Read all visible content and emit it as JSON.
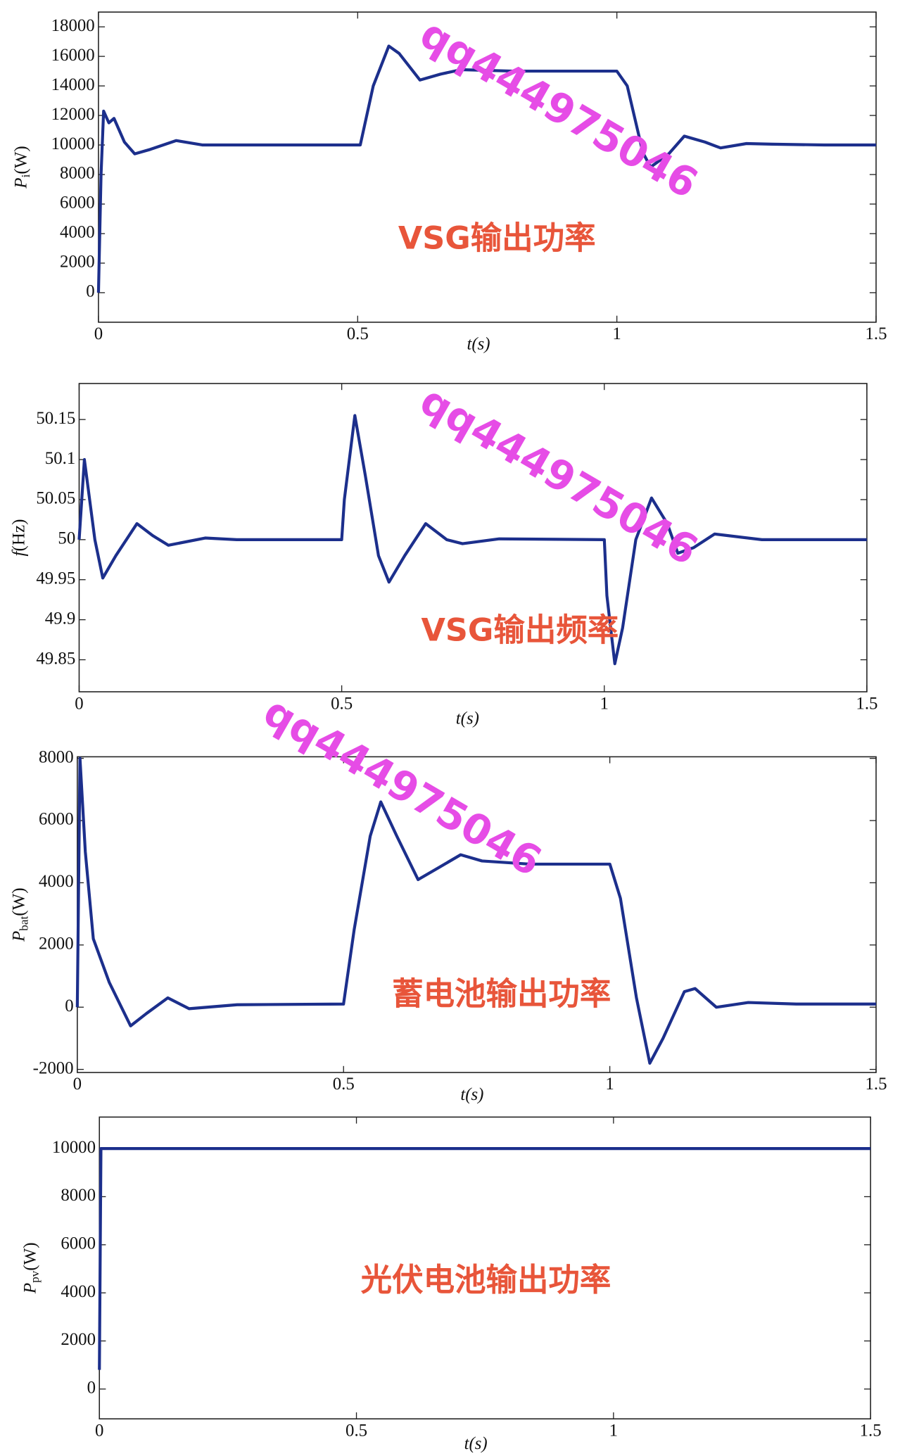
{
  "chart_data": [
    {
      "type": "line",
      "ylabel": [
        "P",
        "i",
        "(W)"
      ],
      "xlabel": "t(s)",
      "annotation": "VSG输出功率",
      "watermark": "qq444975046",
      "xlim": [
        0,
        1.5
      ],
      "xticks": [
        0,
        0.5,
        1,
        1.5
      ],
      "ylim": [
        -2000,
        19000
      ],
      "yticks": [
        0,
        2000,
        4000,
        6000,
        8000,
        10000,
        12000,
        14000,
        16000,
        18000
      ],
      "grid": false,
      "x": [
        0,
        0.005,
        0.01,
        0.02,
        0.03,
        0.05,
        0.07,
        0.1,
        0.15,
        0.2,
        0.3,
        0.45,
        0.505,
        0.53,
        0.56,
        0.58,
        0.62,
        0.66,
        0.7,
        0.8,
        1.0,
        1.02,
        1.05,
        1.065,
        1.1,
        1.13,
        1.17,
        1.2,
        1.25,
        1.3,
        1.4,
        1.5
      ],
      "series": [
        {
          "color": "#1c2f8c",
          "values": [
            0,
            8000,
            12300,
            11500,
            11800,
            10200,
            9400,
            9700,
            10300,
            10000,
            10000,
            10000,
            10000,
            14000,
            16700,
            16200,
            14400,
            14800,
            15100,
            15000,
            15000,
            14000,
            9500,
            8500,
            9400,
            10600,
            10200,
            9800,
            10100,
            10050,
            10000,
            10000
          ]
        }
      ]
    },
    {
      "type": "line",
      "ylabel": [
        "f",
        "",
        "(Hz)"
      ],
      "xlabel": "t(s)",
      "annotation": "VSG输出频率",
      "watermark": "qq444975046",
      "xlim": [
        0,
        1.5
      ],
      "xticks": [
        0,
        0.5,
        1,
        1.5
      ],
      "ylim": [
        49.81,
        50.195
      ],
      "yticks": [
        49.85,
        49.9,
        49.95,
        50,
        50.05,
        50.1,
        50.15
      ],
      "grid": false,
      "x": [
        0,
        0.01,
        0.03,
        0.045,
        0.07,
        0.11,
        0.14,
        0.17,
        0.24,
        0.3,
        0.5,
        0.505,
        0.525,
        0.545,
        0.57,
        0.59,
        0.62,
        0.66,
        0.7,
        0.73,
        0.8,
        1.0,
        1.005,
        1.02,
        1.035,
        1.06,
        1.09,
        1.12,
        1.14,
        1.17,
        1.21,
        1.3,
        1.5
      ],
      "series": [
        {
          "color": "#1c2f8c",
          "values": [
            50,
            50.1,
            50.0,
            49.952,
            49.98,
            50.02,
            50.005,
            49.993,
            50.002,
            50,
            50,
            50.05,
            50.155,
            50.08,
            49.98,
            49.947,
            49.98,
            50.02,
            50.0,
            49.995,
            50.001,
            50,
            49.93,
            49.845,
            49.89,
            50.0,
            50.052,
            50.02,
            49.983,
            49.99,
            50.007,
            50,
            50
          ]
        }
      ]
    },
    {
      "type": "line",
      "ylabel": [
        "P",
        "bat",
        "(W)"
      ],
      "xlabel": "t(s)",
      "annotation": "蓄电池输出功率",
      "watermark": "qq444975046",
      "xlim": [
        0,
        1.5
      ],
      "xticks": [
        0,
        0.5,
        1,
        1.5
      ],
      "ylim": [
        -2100,
        8050
      ],
      "yticks": [
        -2000,
        0,
        2000,
        4000,
        6000,
        8000
      ],
      "grid": false,
      "x": [
        0,
        0.005,
        0.015,
        0.03,
        0.06,
        0.1,
        0.13,
        0.17,
        0.21,
        0.3,
        0.5,
        0.52,
        0.55,
        0.57,
        0.6,
        0.64,
        0.68,
        0.72,
        0.76,
        0.85,
        1.0,
        1.02,
        1.05,
        1.075,
        1.1,
        1.14,
        1.16,
        1.2,
        1.26,
        1.35,
        1.5
      ],
      "series": [
        {
          "color": "#1c2f8c",
          "values": [
            0,
            8000,
            5000,
            2200,
            800,
            -600,
            -200,
            300,
            -50,
            80,
            100,
            2500,
            5500,
            6600,
            5500,
            4100,
            4500,
            4900,
            4700,
            4600,
            4600,
            3500,
            300,
            -1800,
            -1000,
            500,
            600,
            0,
            150,
            100,
            100
          ]
        }
      ]
    },
    {
      "type": "line",
      "ylabel": [
        "P",
        "pv",
        "(W)"
      ],
      "xlabel": "t(s)",
      "annotation": "光伏电池输出功率",
      "xlim": [
        0,
        1.5
      ],
      "xticks": [
        0,
        0.5,
        1,
        1.5
      ],
      "ylim": [
        -1240,
        11310
      ],
      "yticks": [
        0,
        2000,
        4000,
        6000,
        8000,
        10000
      ],
      "grid": false,
      "x": [
        0,
        0.003,
        1.5
      ],
      "series": [
        {
          "color": "#1c2f8c",
          "values": [
            800,
            10000,
            10000
          ]
        }
      ]
    }
  ]
}
